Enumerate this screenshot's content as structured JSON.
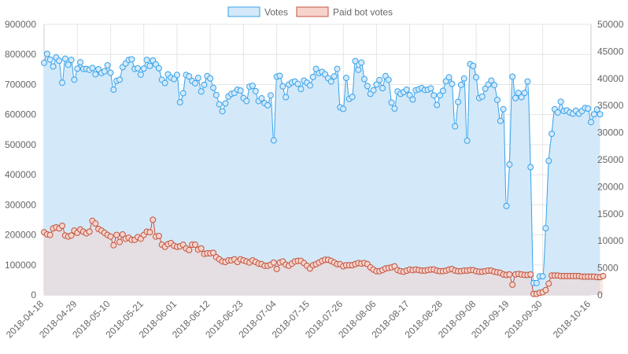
{
  "chart_data": {
    "type": "line",
    "legend": {
      "position": "top"
    },
    "grid": true,
    "x_ticks": [
      "2018-04-18",
      "2018-04-29",
      "2018-05-10",
      "2018-05-21",
      "2018-06-01",
      "2018-06-12",
      "2018-06-23",
      "2018-07-04",
      "2018-07-15",
      "2018-07-26",
      "2018-08-06",
      "2018-08-17",
      "2018-08-28",
      "2018-09-08",
      "2018-09-19",
      "2018-09-30",
      "2018-10-16"
    ],
    "x_range": [
      "2018-04-18",
      "2018-10-16"
    ],
    "y_left": {
      "min": 0,
      "max": 900000,
      "ticks": [
        "0",
        "100000",
        "200000",
        "300000",
        "400000",
        "500000",
        "600000",
        "700000",
        "800000",
        "900000"
      ]
    },
    "y_right": {
      "min": 0,
      "max": 50000,
      "ticks": [
        "0",
        "5000",
        "10000",
        "15000",
        "20000",
        "25000",
        "30000",
        "35000",
        "40000",
        "45000",
        "50000"
      ]
    },
    "series": [
      {
        "name": "Votes",
        "axis": "left",
        "line_color": "#36a2eb",
        "fill_color": "#d3e9f9",
        "values": [
          772000,
          802000,
          783000,
          760000,
          790000,
          779000,
          706000,
          786000,
          766000,
          782000,
          716000,
          753000,
          774000,
          752000,
          752000,
          749000,
          755000,
          734000,
          751000,
          738000,
          744000,
          764000,
          739000,
          683000,
          712000,
          716000,
          758000,
          770000,
          782000,
          784000,
          752000,
          754000,
          733000,
          753000,
          782000,
          762000,
          780000,
          767000,
          754000,
          716000,
          705000,
          734000,
          723000,
          718000,
          732000,
          641000,
          671000,
          732000,
          727000,
          712000,
          704000,
          722000,
          677000,
          699000,
          728000,
          720000,
          689000,
          665000,
          634000,
          611000,
          637000,
          660000,
          669000,
          672000,
          683000,
          680000,
          655000,
          645000,
          693000,
          696000,
          678000,
          645000,
          654000,
          638000,
          631000,
          664000,
          514000,
          726000,
          729000,
          694000,
          658000,
          700000,
          707000,
          710000,
          702000,
          685000,
          713000,
          706000,
          697000,
          725000,
          752000,
          738000,
          742000,
          734000,
          721000,
          710000,
          727000,
          752000,
          624000,
          619000,
          722000,
          652000,
          659000,
          778000,
          749000,
          773000,
          718000,
          695000,
          669000,
          681000,
          700000,
          715000,
          688000,
          728000,
          716000,
          640000,
          620000,
          677000,
          669000,
          675000,
          683000,
          665000,
          650000,
          681000,
          684000,
          688000,
          682000,
          683000,
          687000,
          664000,
          632000,
          664000,
          679000,
          711000,
          724000,
          702000,
          561000,
          642000,
          699000,
          720000,
          513000,
          768000,
          762000,
          724000,
          655000,
          660000,
          686000,
          700000,
          713000,
          698000,
          649000,
          579000,
          618000,
          296000,
          434000,
          726000,
          655000,
          672000,
          658000,
          672000,
          710000,
          425000,
          40000,
          40000,
          62000,
          62000,
          222000,
          446000,
          536000,
          618000,
          607000,
          643000,
          612000,
          614000,
          607000,
          603000,
          613000,
          603000,
          612000,
          622000,
          620000,
          575000,
          601000,
          617000,
          601000
        ]
      },
      {
        "name": "Paid bot votes",
        "axis": "right",
        "line_color": "#c0543e",
        "fill_color": "#f8d3cc",
        "values": [
          11600,
          11200,
          11100,
          12300,
          12500,
          12300,
          12800,
          11000,
          10800,
          11000,
          11900,
          11500,
          12100,
          11700,
          11400,
          11700,
          13700,
          13200,
          12200,
          11900,
          11500,
          11100,
          10800,
          9200,
          11100,
          9800,
          11200,
          10400,
          10600,
          10200,
          10200,
          10700,
          10400,
          11100,
          11700,
          11600,
          13900,
          10800,
          10900,
          9300,
          8900,
          9400,
          9600,
          9100,
          8900,
          9000,
          9300,
          8600,
          8300,
          9300,
          9300,
          8400,
          8600,
          7600,
          7700,
          7700,
          7800,
          7000,
          6600,
          6200,
          6100,
          6400,
          6400,
          6600,
          6100,
          6600,
          6400,
          6200,
          6000,
          6400,
          6100,
          5800,
          5700,
          5400,
          5400,
          5600,
          6000,
          4800,
          6000,
          6200,
          5600,
          5400,
          5800,
          6200,
          6300,
          6300,
          5900,
          5400,
          4900,
          5500,
          5700,
          6000,
          6300,
          6500,
          6500,
          6300,
          6000,
          5700,
          5700,
          5300,
          5500,
          5500,
          5500,
          5700,
          5900,
          5800,
          5900,
          5700,
          5100,
          4700,
          4400,
          4400,
          4600,
          4900,
          5000,
          5100,
          5300,
          4600,
          4400,
          4300,
          4500,
          4700,
          4600,
          4700,
          4600,
          4500,
          4500,
          4600,
          4700,
          4700,
          4500,
          4400,
          4400,
          4500,
          4700,
          4800,
          4500,
          4400,
          4400,
          4500,
          4500,
          4600,
          4600,
          4400,
          4300,
          4300,
          4400,
          4500,
          4500,
          4300,
          4200,
          4100,
          3800,
          3700,
          3800,
          1900,
          3800,
          3900,
          3800,
          3700,
          3700,
          3800,
          200,
          200,
          400,
          500,
          900,
          2100,
          3600,
          3600,
          3600,
          3500,
          3500,
          3500,
          3500,
          3500,
          3500,
          3500,
          3400,
          3400,
          3400,
          3400,
          3400,
          3300,
          3300,
          3500
        ]
      }
    ]
  }
}
